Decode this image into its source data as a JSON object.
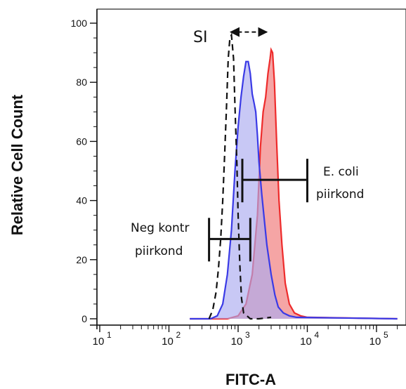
{
  "chart_data": {
    "type": "area",
    "xlabel": "FITC-A",
    "ylabel": "Relative Cell Count",
    "xscale": "log",
    "xlim": [
      10,
      200000
    ],
    "ylim": [
      -3,
      105
    ],
    "y_ticks": [
      {
        "value": 0,
        "label": "0"
      },
      {
        "value": 20,
        "label": "20"
      },
      {
        "value": 40,
        "label": "40"
      },
      {
        "value": 60,
        "label": "60"
      },
      {
        "value": 80,
        "label": "80"
      },
      {
        "value": 100,
        "label": "100"
      }
    ],
    "x_ticks": [
      {
        "value": 10,
        "base": "10",
        "exp": "1"
      },
      {
        "value": 100,
        "base": "10",
        "exp": "2"
      },
      {
        "value": 1000,
        "base": "10",
        "exp": "3"
      },
      {
        "value": 10000,
        "base": "10",
        "exp": "4"
      },
      {
        "value": 100000,
        "base": "10",
        "exp": "5"
      }
    ],
    "series": [
      {
        "color": "#ee2b2b",
        "fill": "#f07474",
        "style": "filled",
        "points": [
          [
            200,
            0
          ],
          [
            700,
            0
          ],
          [
            1000,
            1
          ],
          [
            1300,
            5
          ],
          [
            1600,
            15
          ],
          [
            1900,
            35
          ],
          [
            2100,
            58
          ],
          [
            2300,
            70
          ],
          [
            2500,
            75
          ],
          [
            2700,
            83
          ],
          [
            2900,
            88
          ],
          [
            3000,
            91
          ],
          [
            3150,
            90
          ],
          [
            3350,
            80
          ],
          [
            3600,
            60
          ],
          [
            3900,
            40
          ],
          [
            4300,
            25
          ],
          [
            4800,
            12
          ],
          [
            5500,
            5
          ],
          [
            6500,
            2
          ],
          [
            8000,
            1
          ],
          [
            10000,
            0.5
          ],
          [
            200000,
            0
          ]
        ]
      },
      {
        "color": "#3a3ae6",
        "fill": "#aaaaf0",
        "style": "filled",
        "points": [
          [
            200,
            0
          ],
          [
            400,
            0
          ],
          [
            500,
            1
          ],
          [
            600,
            5
          ],
          [
            700,
            15
          ],
          [
            800,
            30
          ],
          [
            900,
            50
          ],
          [
            1000,
            65
          ],
          [
            1100,
            75
          ],
          [
            1200,
            82
          ],
          [
            1300,
            87
          ],
          [
            1400,
            87
          ],
          [
            1500,
            83
          ],
          [
            1600,
            76
          ],
          [
            1700,
            73
          ],
          [
            1800,
            70
          ],
          [
            1900,
            62
          ],
          [
            2000,
            53
          ],
          [
            2200,
            42
          ],
          [
            2400,
            33
          ],
          [
            2600,
            25
          ],
          [
            3000,
            15
          ],
          [
            3400,
            8
          ],
          [
            3800,
            4
          ],
          [
            4500,
            2
          ],
          [
            5500,
            1
          ],
          [
            7000,
            0.5
          ],
          [
            200000,
            0
          ]
        ]
      },
      {
        "color": "#111111",
        "style": "dashed",
        "points": [
          [
            380,
            0
          ],
          [
            430,
            3
          ],
          [
            480,
            9
          ],
          [
            520,
            17
          ],
          [
            560,
            27
          ],
          [
            600,
            40
          ],
          [
            640,
            56
          ],
          [
            680,
            72
          ],
          [
            720,
            88
          ],
          [
            760,
            95
          ],
          [
            800,
            96
          ],
          [
            860,
            88
          ],
          [
            900,
            72
          ],
          [
            960,
            52
          ],
          [
            1000,
            35
          ],
          [
            1060,
            18
          ],
          [
            1120,
            7
          ],
          [
            1200,
            2
          ],
          [
            1500,
            0
          ],
          [
            2000,
            0
          ],
          [
            3000,
            0.5
          ]
        ]
      }
    ],
    "annotations": {
      "si_label": "SI",
      "ecoli_line1": "E. coli",
      "ecoli_line2": "piirkond",
      "neg_line1": "Neg kontr",
      "neg_line2": "piirkond"
    },
    "gates": [
      {
        "name": "ecoli-gate",
        "x_from": 1150,
        "x_to": 10000,
        "y": 47
      },
      {
        "name": "neg-control-gate",
        "x_from": 380,
        "x_to": 1500,
        "y": 27
      }
    ],
    "si_arrow": {
      "x_from": 780,
      "x_to": 2600,
      "y": 97
    }
  }
}
